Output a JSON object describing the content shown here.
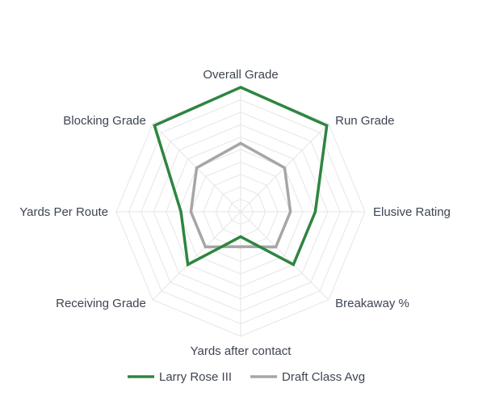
{
  "chart_data": {
    "type": "radar",
    "categories": [
      "Overall Grade",
      "Run Grade",
      "Elusive Rating",
      "Breakaway %",
      "Yards after contact",
      "Receiving Grade",
      "Yards Per Route",
      "Blocking Grade"
    ],
    "rmax": 100,
    "grid_levels": 10,
    "grid": true,
    "legend_position": "bottom",
    "series": [
      {
        "name": "Larry Rose III",
        "color": "#2e8540",
        "values": [
          100,
          98,
          60,
          60,
          20,
          60,
          48,
          98
        ]
      },
      {
        "name": "Draft Class Avg",
        "color": "#a6a6a6",
        "values": [
          55,
          50,
          40,
          40,
          28,
          40,
          40,
          50
        ]
      }
    ]
  }
}
